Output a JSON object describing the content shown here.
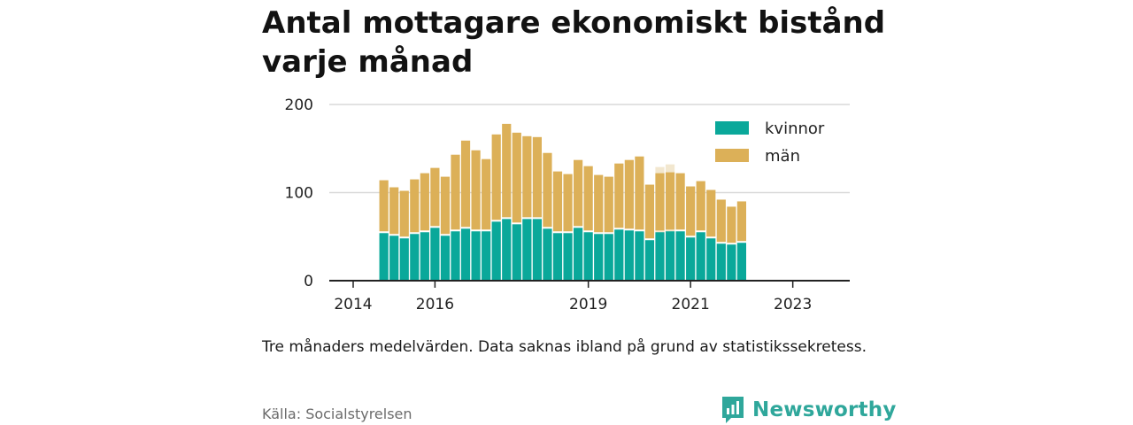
{
  "title": "Antal mottagare ekonomiskt bistånd varje månad",
  "caption": "Tre månaders medelvärden. Data saknas ibland på grund av statistikssekretess.",
  "source": "Källa: Socialstyrelsen",
  "brand": {
    "name": "Newsworthy",
    "icon": "newsworthy-logo-icon",
    "color": "#2fa79b"
  },
  "colors": {
    "kvinnor": "#0aa89a",
    "man": "#dcb058",
    "axis": "#222222",
    "grid": "#d9d9d9",
    "faint": "#f2e7cf"
  },
  "chart_data": {
    "type": "bar",
    "stacked": true,
    "ylim": [
      0,
      200
    ],
    "yticks": [
      "0",
      "100",
      "200"
    ],
    "xticks": [
      {
        "label": "2014",
        "index": 0
      },
      {
        "label": "2016",
        "index": 8
      },
      {
        "label": "2019",
        "index": 23
      },
      {
        "label": "2021",
        "index": 33
      },
      {
        "label": "2023",
        "index": 43
      }
    ],
    "grid": true,
    "legend_position": "top-right",
    "series": [
      {
        "name": "kvinnor",
        "color": "#0aa89a",
        "values": [
          54,
          51,
          48,
          53,
          55,
          60,
          51,
          56,
          59,
          56,
          56,
          67,
          70,
          64,
          70,
          70,
          59,
          54,
          54,
          60,
          55,
          53,
          53,
          58,
          57,
          56,
          46,
          55,
          56,
          56,
          49,
          55,
          48,
          42,
          41,
          43
        ]
      },
      {
        "name": "män",
        "color": "#dcb058",
        "values": [
          60,
          55,
          54,
          62,
          67,
          68,
          67,
          87,
          100,
          92,
          82,
          99,
          108,
          104,
          94,
          93,
          86,
          70,
          67,
          77,
          75,
          67,
          65,
          75,
          80,
          85,
          63,
          67,
          67,
          66,
          58,
          58,
          55,
          50,
          43,
          47
        ]
      }
    ],
    "faint_overlay_totals": [
      {
        "index": 27,
        "total": 129
      },
      {
        "index": 28,
        "total": 132
      }
    ],
    "bar_indices": [
      3,
      4,
      5,
      6,
      7,
      8,
      9,
      10,
      11,
      12,
      13,
      14,
      15,
      16,
      17,
      18,
      19,
      20,
      21,
      22,
      23,
      24,
      25,
      26,
      27,
      28,
      29,
      30,
      31,
      32,
      33,
      34,
      35,
      36,
      37,
      38
    ]
  }
}
